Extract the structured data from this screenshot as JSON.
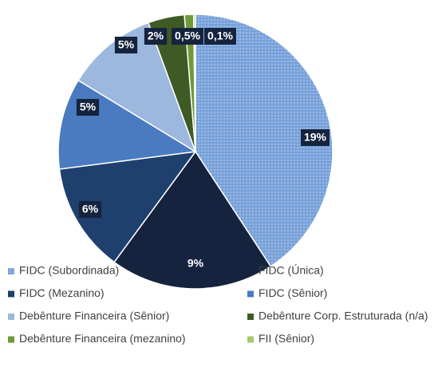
{
  "chart_data": {
    "type": "pie",
    "categories": [
      "FIDC (Subordinada)",
      "FIDC (Única)",
      "FIDC (Mezanino)",
      "FIDC (Sênior)",
      "Debênture Financeira (Sênior)",
      "Debênture Corp. Estruturada (n/a)",
      "Debênture Financeira (mezanino)",
      "FII (Sênior)"
    ],
    "values": [
      19,
      9,
      6,
      5,
      5,
      2,
      0.5,
      0.1
    ],
    "value_labels": [
      "19%",
      "9%",
      "6%",
      "5%",
      "5%",
      "2%",
      "0,5%",
      "0,1%"
    ],
    "colors": [
      "#7ea6dc",
      "#15233f",
      "#1f3f6e",
      "#4a7bc0",
      "#9db8de",
      "#3e5a25",
      "#6f9a3a",
      "#a7c96b"
    ],
    "legend": "bottom"
  }
}
